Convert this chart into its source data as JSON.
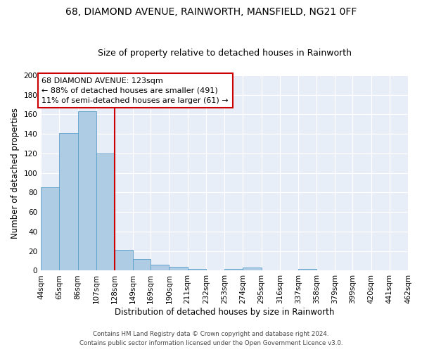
{
  "title": "68, DIAMOND AVENUE, RAINWORTH, MANSFIELD, NG21 0FF",
  "subtitle": "Size of property relative to detached houses in Rainworth",
  "xlabel": "Distribution of detached houses by size in Rainworth",
  "ylabel": "Number of detached properties",
  "bins": [
    44,
    65,
    86,
    107,
    128,
    149,
    169,
    190,
    211,
    232,
    253,
    274,
    295,
    316,
    337,
    358,
    379,
    399,
    420,
    441,
    462
  ],
  "values": [
    85,
    141,
    163,
    120,
    21,
    12,
    6,
    4,
    2,
    0,
    2,
    3,
    0,
    0,
    2,
    0,
    0,
    0,
    0,
    0
  ],
  "bar_color": "#aecce4",
  "bar_edge_color": "#5b9ec9",
  "property_line_x": 128,
  "property_line_color": "#cc0000",
  "annotation_text": "68 DIAMOND AVENUE: 123sqm\n← 88% of detached houses are smaller (491)\n11% of semi-detached houses are larger (61) →",
  "annotation_box_color": "#cc0000",
  "annotation_text_color": "#000000",
  "ylim": [
    0,
    200
  ],
  "yticks": [
    0,
    20,
    40,
    60,
    80,
    100,
    120,
    140,
    160,
    180,
    200
  ],
  "background_color": "#e8eef8",
  "footer1": "Contains HM Land Registry data © Crown copyright and database right 2024.",
  "footer2": "Contains public sector information licensed under the Open Government Licence v3.0.",
  "title_fontsize": 10,
  "subtitle_fontsize": 9,
  "axis_label_fontsize": 8.5,
  "tick_fontsize": 7.5,
  "annotation_fontsize": 8
}
